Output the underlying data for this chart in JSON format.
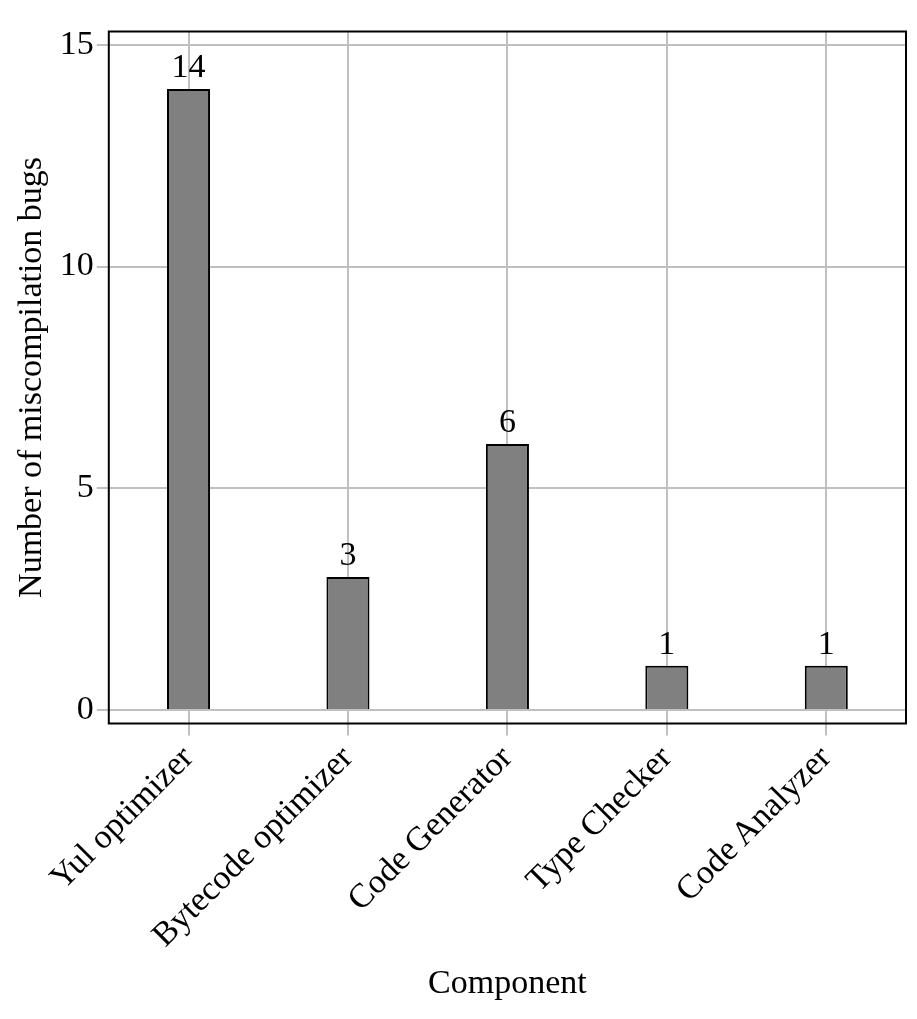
{
  "chart_data": {
    "type": "bar",
    "categories": [
      "Yul optimizer",
      "Bytecode optimizer",
      "Code Generator",
      "Type Checker",
      "Code Analyzer"
    ],
    "values": [
      14,
      3,
      6,
      1,
      1
    ],
    "color": "#808080",
    "xlabel": "Component",
    "ylabel": "Number of miscompilation bugs",
    "ylim": [
      -0.3,
      15.3
    ],
    "yticks": [
      0,
      5,
      10,
      15
    ],
    "grid": true,
    "data_labels": true
  }
}
